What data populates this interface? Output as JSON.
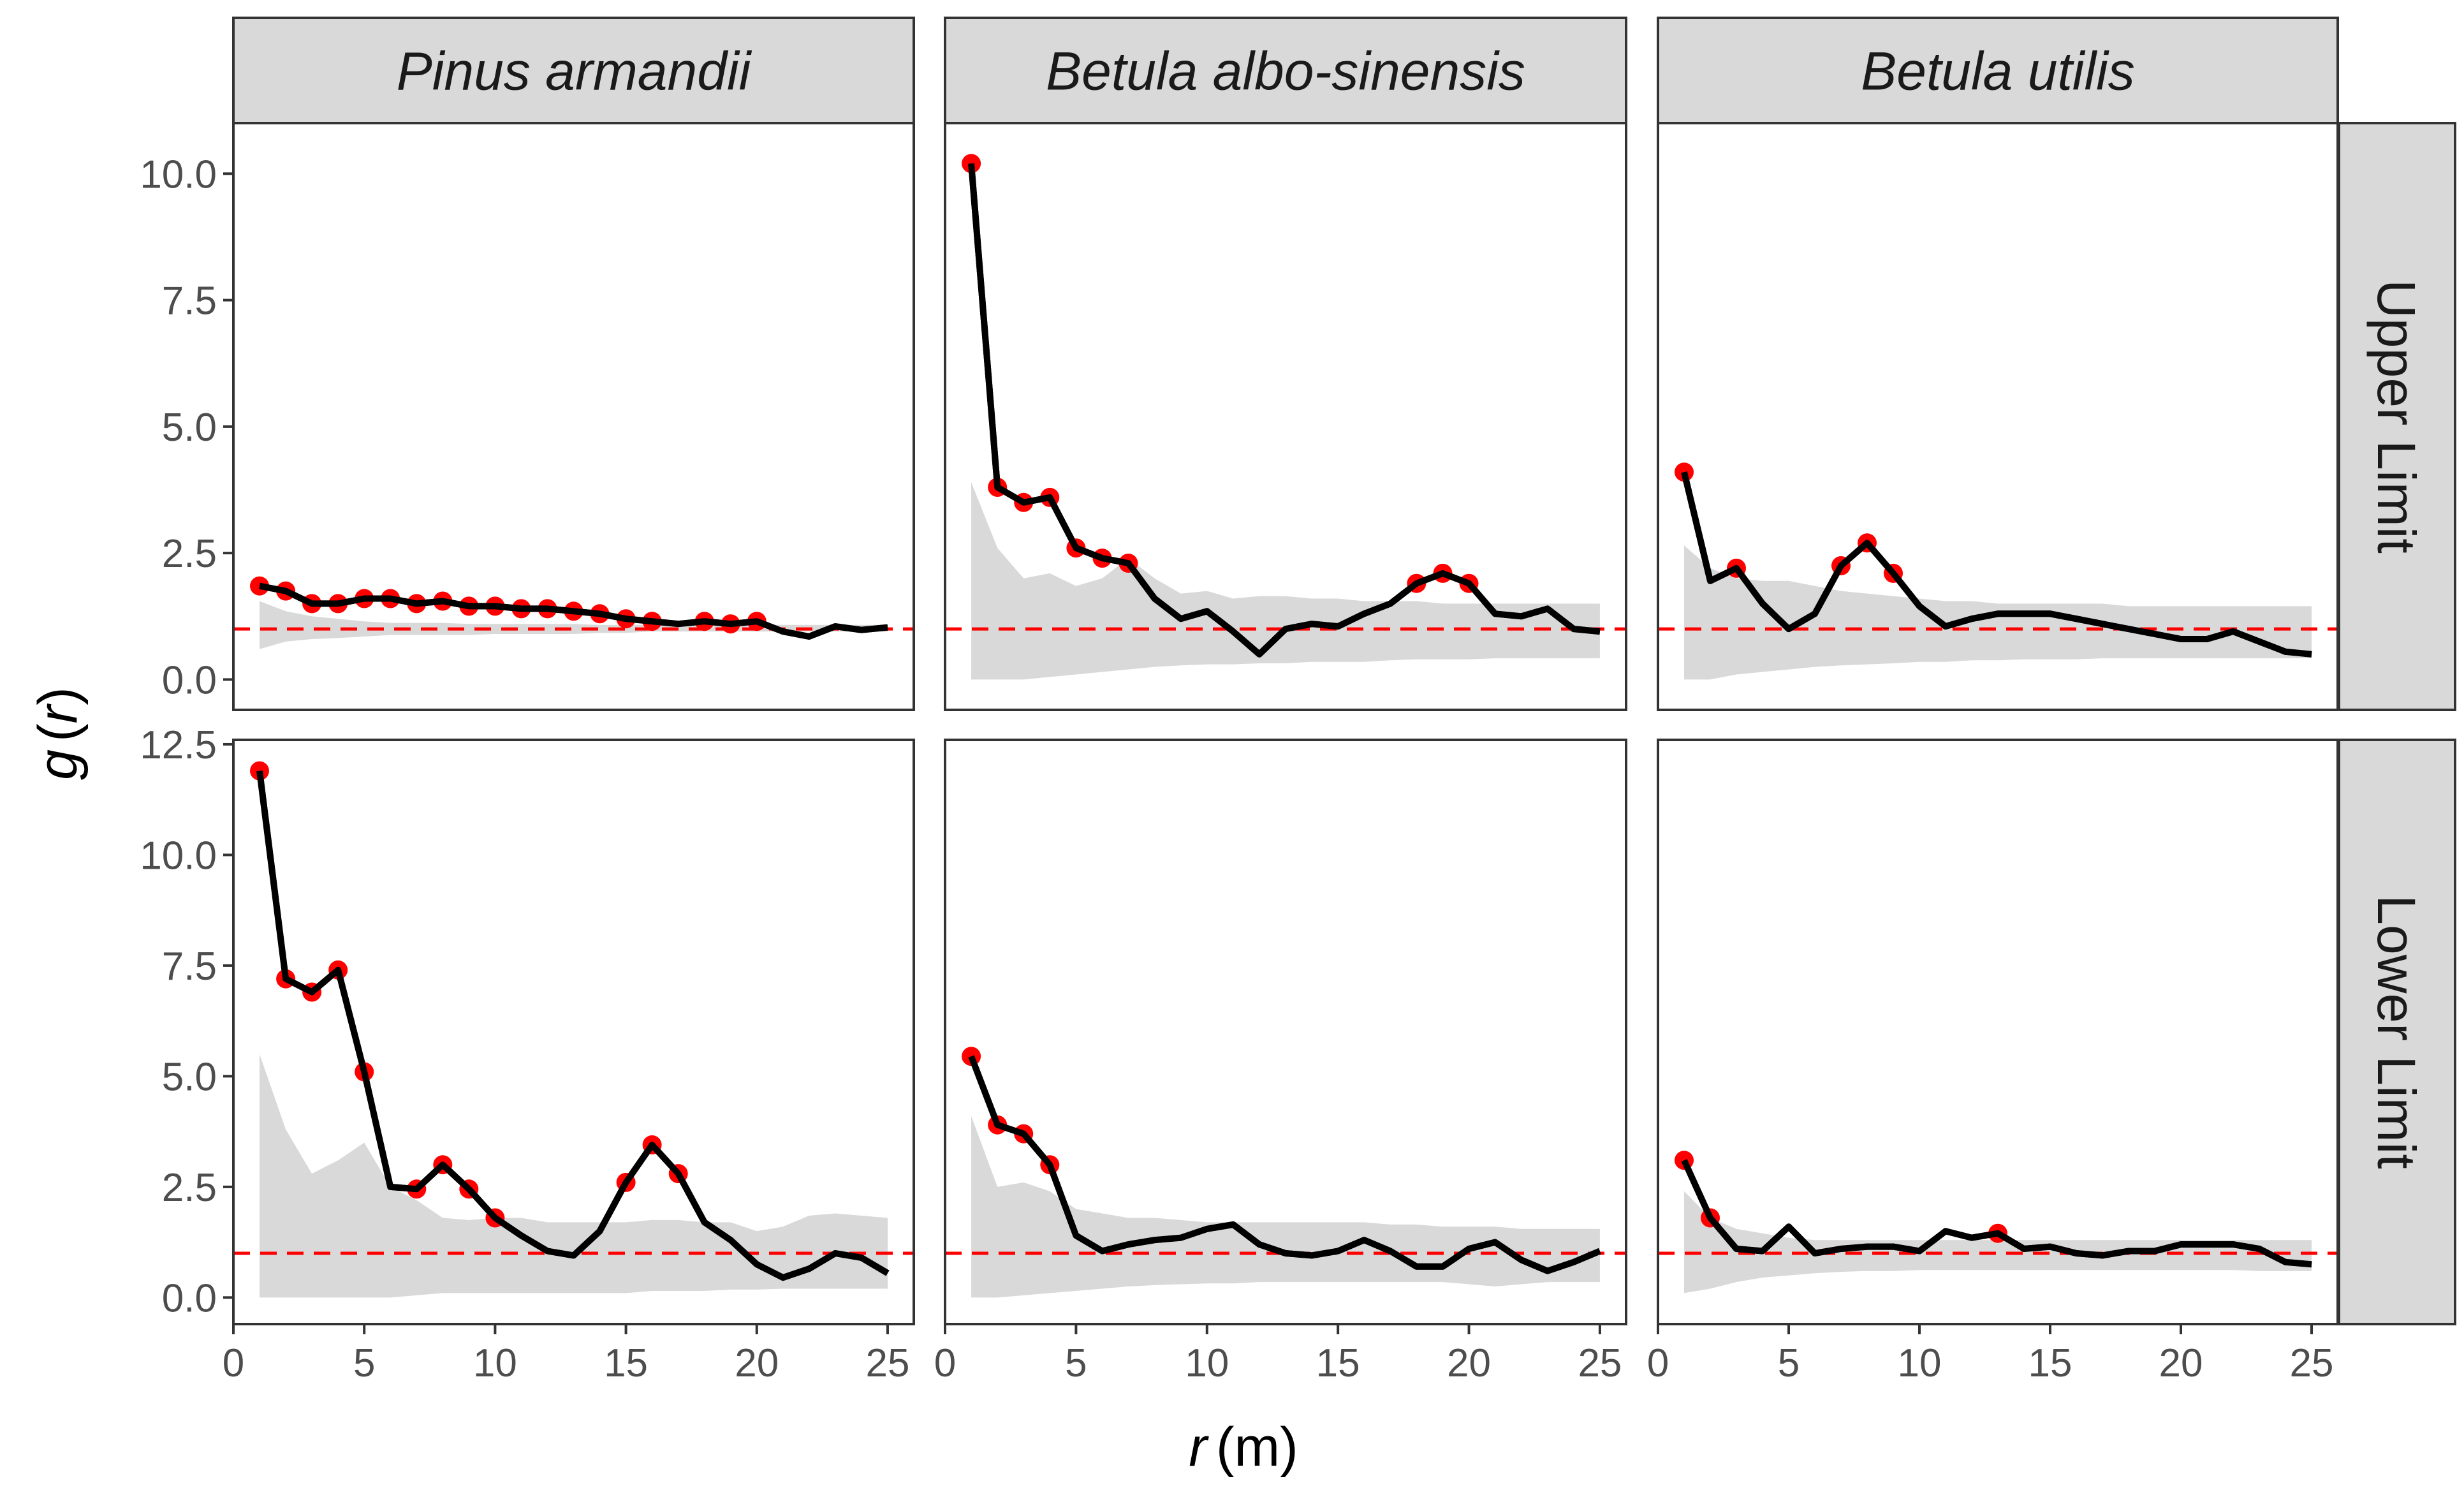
{
  "chart_data": {
    "type": "line",
    "description_panels": "3 columns (species) x 2 rows (elevation limit); each panel shows g(r) line, red points where outside envelope, grey envelope, red dashed reference at 1",
    "title": "",
    "xlabel_var": "r",
    "xlabel_unit": "(m)",
    "ylabel_var": "g",
    "ylabel_arg": "r",
    "xlim": [
      0,
      26
    ],
    "x_ticks": [
      0,
      5,
      10,
      15,
      20,
      25
    ],
    "reference_line": 1,
    "columns": [
      "Pinus armandii",
      "Betula albo-sinensis",
      "Betula utilis"
    ],
    "rows": [
      {
        "label": "Upper Limit",
        "ylim": [
          -0.6,
          11.0
        ],
        "y_ticks": [
          0,
          2.5,
          5,
          7.5,
          10
        ],
        "y_tick_labels": [
          "0.0",
          "2.5",
          "5.0",
          "7.5",
          "10.0"
        ]
      },
      {
        "label": "Lower Limit",
        "ylim": [
          -0.6,
          12.6
        ],
        "y_ticks": [
          0,
          2.5,
          5,
          7.5,
          10,
          12.5
        ],
        "y_tick_labels": [
          "0.0",
          "2.5",
          "5.0",
          "7.5",
          "10.0",
          "12.5"
        ]
      }
    ],
    "x": [
      1,
      2,
      3,
      4,
      5,
      6,
      7,
      8,
      9,
      10,
      11,
      12,
      13,
      14,
      15,
      16,
      17,
      18,
      19,
      20,
      21,
      22,
      23,
      24,
      25
    ],
    "panels": [
      {
        "row": 0,
        "col": 0,
        "g": [
          1.85,
          1.75,
          1.5,
          1.5,
          1.6,
          1.6,
          1.5,
          1.55,
          1.45,
          1.45,
          1.4,
          1.4,
          1.35,
          1.3,
          1.2,
          1.15,
          1.1,
          1.15,
          1.1,
          1.15,
          0.95,
          0.85,
          1.05,
          0.98,
          1.03
        ],
        "points_x": [
          1,
          2,
          3,
          4,
          5,
          6,
          7,
          8,
          9,
          10,
          11,
          12,
          13,
          14,
          15,
          16,
          18,
          19,
          20
        ],
        "env_lo": [
          0.6,
          0.75,
          0.8,
          0.82,
          0.85,
          0.88,
          0.88,
          0.88,
          0.88,
          0.9,
          0.9,
          0.9,
          0.9,
          0.92,
          0.92,
          0.95,
          0.95,
          0.95,
          0.95,
          0.95,
          0.95,
          0.95,
          0.95,
          0.95,
          0.95
        ],
        "env_hi": [
          1.55,
          1.35,
          1.25,
          1.2,
          1.15,
          1.12,
          1.12,
          1.12,
          1.1,
          1.1,
          1.1,
          1.1,
          1.1,
          1.08,
          1.08,
          1.08,
          1.08,
          1.08,
          1.08,
          1.08,
          1.08,
          1.08,
          1.08,
          1.08,
          1.08
        ]
      },
      {
        "row": 0,
        "col": 1,
        "g": [
          10.2,
          3.8,
          3.5,
          3.6,
          2.6,
          2.4,
          2.3,
          1.6,
          1.2,
          1.35,
          0.95,
          0.5,
          1.0,
          1.1,
          1.05,
          1.3,
          1.5,
          1.9,
          2.1,
          1.9,
          1.3,
          1.25,
          1.4,
          1.0,
          0.95
        ],
        "points_x": [
          1,
          2,
          3,
          4,
          5,
          6,
          7,
          18,
          19,
          20
        ],
        "env_lo": [
          0.0,
          0.0,
          0.0,
          0.05,
          0.1,
          0.15,
          0.2,
          0.25,
          0.28,
          0.3,
          0.3,
          0.32,
          0.32,
          0.35,
          0.35,
          0.35,
          0.38,
          0.4,
          0.4,
          0.4,
          0.42,
          0.42,
          0.42,
          0.42,
          0.42
        ],
        "env_hi": [
          3.9,
          2.6,
          2.0,
          2.1,
          1.85,
          2.0,
          2.4,
          2.0,
          1.7,
          1.75,
          1.6,
          1.65,
          1.65,
          1.6,
          1.6,
          1.55,
          1.55,
          1.55,
          1.5,
          1.5,
          1.5,
          1.5,
          1.5,
          1.5,
          1.5
        ]
      },
      {
        "row": 0,
        "col": 2,
        "g": [
          4.1,
          1.95,
          2.2,
          1.5,
          1.0,
          1.3,
          2.25,
          2.7,
          2.1,
          1.45,
          1.05,
          1.2,
          1.3,
          1.3,
          1.3,
          1.2,
          1.1,
          1.0,
          0.9,
          0.8,
          0.8,
          0.95,
          0.75,
          0.55,
          0.5
        ],
        "points_x": [
          1,
          3,
          7,
          8,
          9
        ],
        "env_lo": [
          0.0,
          0.0,
          0.1,
          0.15,
          0.2,
          0.25,
          0.28,
          0.3,
          0.32,
          0.35,
          0.35,
          0.38,
          0.38,
          0.4,
          0.4,
          0.4,
          0.42,
          0.42,
          0.42,
          0.42,
          0.42,
          0.42,
          0.42,
          0.42,
          0.42
        ],
        "env_hi": [
          2.65,
          2.2,
          2.0,
          1.95,
          1.95,
          1.85,
          1.75,
          1.7,
          1.65,
          1.6,
          1.55,
          1.55,
          1.5,
          1.5,
          1.5,
          1.5,
          1.5,
          1.45,
          1.45,
          1.45,
          1.45,
          1.45,
          1.45,
          1.45,
          1.45
        ]
      },
      {
        "row": 1,
        "col": 0,
        "g": [
          11.9,
          7.2,
          6.9,
          7.4,
          5.1,
          2.5,
          2.45,
          3.0,
          2.45,
          1.8,
          1.4,
          1.05,
          0.95,
          1.5,
          2.6,
          3.45,
          2.8,
          1.7,
          1.3,
          0.75,
          0.45,
          0.65,
          1.0,
          0.9,
          0.55
        ],
        "points_x": [
          1,
          2,
          3,
          4,
          5,
          7,
          8,
          9,
          10,
          15,
          16,
          17
        ],
        "env_lo": [
          0.0,
          0.0,
          0.0,
          0.0,
          0.0,
          0.0,
          0.05,
          0.1,
          0.1,
          0.1,
          0.1,
          0.1,
          0.1,
          0.1,
          0.1,
          0.15,
          0.15,
          0.15,
          0.18,
          0.18,
          0.2,
          0.2,
          0.2,
          0.2,
          0.2
        ],
        "env_hi": [
          5.5,
          3.8,
          2.8,
          3.1,
          3.5,
          2.5,
          2.2,
          1.8,
          1.75,
          1.8,
          1.8,
          1.7,
          1.7,
          1.7,
          1.7,
          1.75,
          1.75,
          1.7,
          1.7,
          1.5,
          1.6,
          1.85,
          1.9,
          1.85,
          1.8
        ]
      },
      {
        "row": 1,
        "col": 1,
        "g": [
          5.45,
          3.9,
          3.7,
          3.0,
          1.4,
          1.05,
          1.2,
          1.3,
          1.35,
          1.55,
          1.65,
          1.2,
          1.0,
          0.95,
          1.05,
          1.3,
          1.05,
          0.7,
          0.7,
          1.1,
          1.25,
          0.85,
          0.6,
          0.8,
          1.05
        ],
        "points_x": [
          1,
          2,
          3,
          4
        ],
        "env_lo": [
          0.0,
          0.0,
          0.05,
          0.1,
          0.15,
          0.2,
          0.25,
          0.28,
          0.3,
          0.32,
          0.32,
          0.35,
          0.35,
          0.35,
          0.35,
          0.35,
          0.35,
          0.35,
          0.35,
          0.3,
          0.25,
          0.3,
          0.35,
          0.35,
          0.35
        ],
        "env_hi": [
          4.1,
          2.5,
          2.6,
          2.4,
          2.0,
          1.9,
          1.8,
          1.8,
          1.75,
          1.7,
          1.7,
          1.7,
          1.7,
          1.7,
          1.7,
          1.7,
          1.65,
          1.65,
          1.6,
          1.6,
          1.6,
          1.55,
          1.55,
          1.55,
          1.55
        ]
      },
      {
        "row": 1,
        "col": 2,
        "g": [
          3.1,
          1.8,
          1.1,
          1.05,
          1.6,
          1.0,
          1.1,
          1.15,
          1.15,
          1.05,
          1.5,
          1.35,
          1.45,
          1.1,
          1.15,
          1.0,
          0.95,
          1.05,
          1.05,
          1.2,
          1.2,
          1.2,
          1.1,
          0.8,
          0.75
        ],
        "points_x": [
          1,
          2,
          13
        ],
        "env_lo": [
          0.1,
          0.2,
          0.35,
          0.45,
          0.5,
          0.55,
          0.58,
          0.6,
          0.6,
          0.62,
          0.62,
          0.62,
          0.62,
          0.62,
          0.62,
          0.62,
          0.62,
          0.62,
          0.62,
          0.62,
          0.62,
          0.62,
          0.6,
          0.6,
          0.6
        ],
        "env_hi": [
          2.4,
          1.8,
          1.55,
          1.45,
          1.35,
          1.3,
          1.3,
          1.3,
          1.3,
          1.3,
          1.3,
          1.3,
          1.3,
          1.3,
          1.3,
          1.3,
          1.3,
          1.3,
          1.3,
          1.3,
          1.3,
          1.3,
          1.3,
          1.3,
          1.3
        ]
      }
    ]
  }
}
